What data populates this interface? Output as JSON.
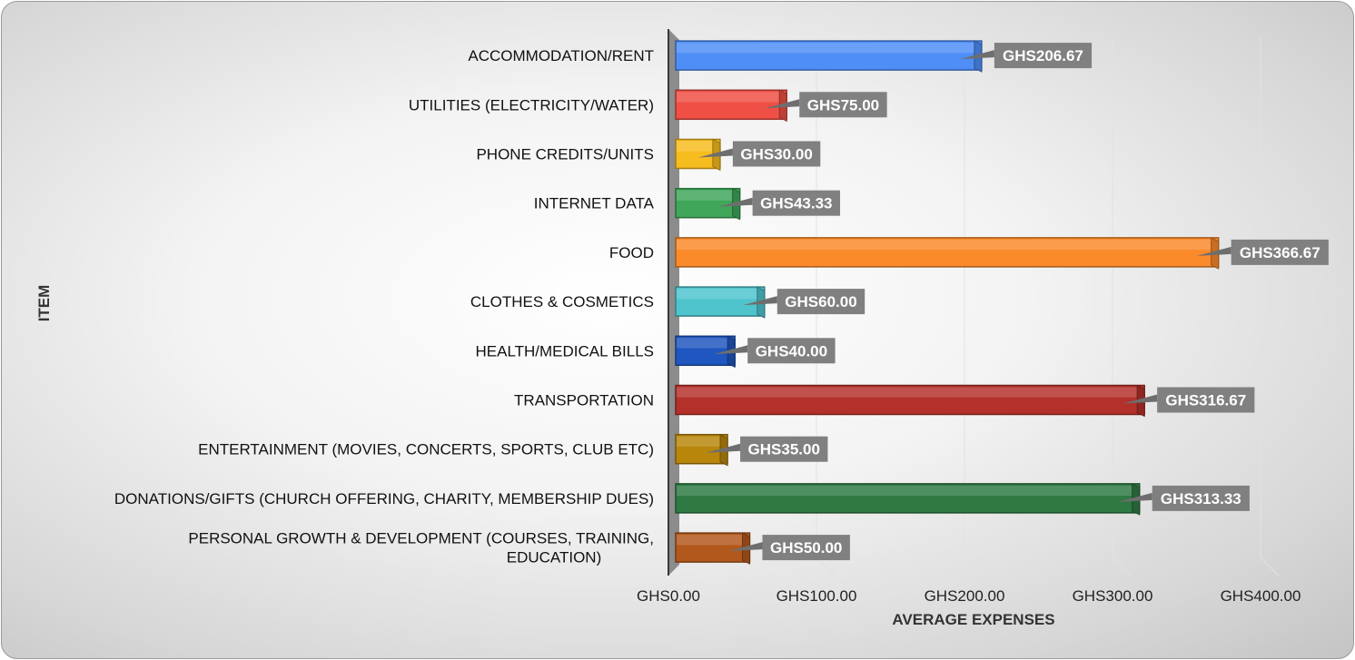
{
  "chart_data": {
    "type": "bar",
    "orientation": "horizontal",
    "style": "3d",
    "xlabel": "AVERAGE EXPENSES",
    "ylabel": "ITEM",
    "xlim": [
      0,
      400
    ],
    "x_ticks": [
      "GHS0.00",
      "GHS100.00",
      "GHS200.00",
      "GHS300.00",
      "GHS400.00"
    ],
    "grid": true,
    "legend": "none",
    "categories": [
      [
        "ACCOMMODATION/RENT"
      ],
      [
        "UTILITIES (ELECTRICITY/WATER)"
      ],
      [
        "PHONE CREDITS/UNITS"
      ],
      [
        "INTERNET DATA"
      ],
      [
        "FOOD"
      ],
      [
        "CLOTHES & COSMETICS"
      ],
      [
        "HEALTH/MEDICAL BILLS"
      ],
      [
        "TRANSPORTATION"
      ],
      [
        "ENTERTAINMENT (MOVIES, CONCERTS, SPORTS, CLUB ETC)"
      ],
      [
        "DONATIONS/GIFTS (CHURCH OFFERING, CHARITY, MEMBERSHIP DUES)"
      ],
      [
        "PERSONAL GROWTH & DEVELOPMENT (COURSES, TRAINING,",
        "EDUCATION)"
      ]
    ],
    "values": [
      206.67,
      75.0,
      30.0,
      43.33,
      366.67,
      60.0,
      40.0,
      316.67,
      35.0,
      313.33,
      50.0
    ],
    "data_labels": [
      "GHS206.67",
      "GHS75.00",
      "GHS30.00",
      "GHS43.33",
      "GHS366.67",
      "GHS60.00",
      "GHS40.00",
      "GHS316.67",
      "GHS35.00",
      "GHS313.33",
      "GHS50.00"
    ],
    "colors": [
      "#4f8ef7",
      "#ef4f45",
      "#f7bd1e",
      "#3fa65a",
      "#fb8a2b",
      "#4fc4cd",
      "#1f56bf",
      "#b4302a",
      "#b8860b",
      "#2f7a43",
      "#b3581c"
    ],
    "data_label_bg": "#808080"
  }
}
